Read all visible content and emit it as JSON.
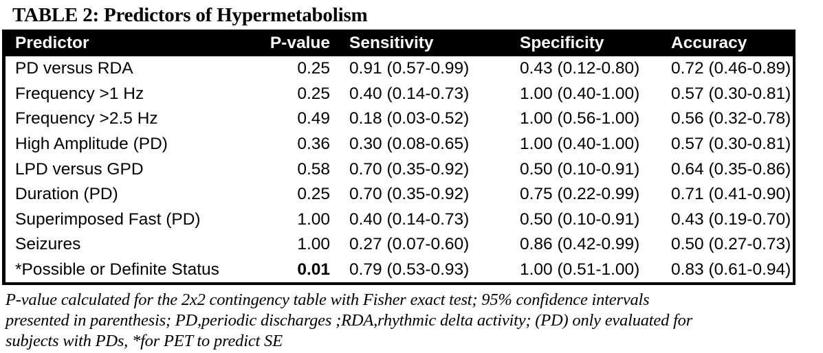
{
  "title": "TABLE 2: Predictors of Hypermetabolism",
  "colors": {
    "header_background": "#000000",
    "header_text": "#ffffff",
    "body_text": "#000000",
    "page_background": "#ffffff",
    "table_border": "#000000"
  },
  "table": {
    "columns": {
      "predictor": "Predictor",
      "p_value": "P-value",
      "sensitivity": "Sensitivity",
      "specificity": "Specificity",
      "accuracy": "Accuracy"
    },
    "rows": [
      {
        "predictor": "PD versus RDA",
        "p_value": "0.25",
        "sensitivity": "0.91 (0.57-0.99)",
        "specificity": "0.43 (0.12-0.80)",
        "accuracy": "0.72 (0.46-0.89)"
      },
      {
        "predictor": "Frequency >1 Hz",
        "p_value": "0.25",
        "sensitivity": "0.40 (0.14-0.73)",
        "specificity": "1.00 (0.40-1.00)",
        "accuracy": "0.57 (0.30-0.81)"
      },
      {
        "predictor": "Frequency >2.5 Hz",
        "p_value": "0.49",
        "sensitivity": "0.18 (0.03-0.52)",
        "specificity": "1.00 (0.56-1.00)",
        "accuracy": "0.56 (0.32-0.78)"
      },
      {
        "predictor": "High Amplitude (PD)",
        "p_value": "0.36",
        "sensitivity": "0.30 (0.08-0.65)",
        "specificity": "1.00 (0.40-1.00)",
        "accuracy": "0.57 (0.30-0.81)"
      },
      {
        "predictor": "LPD versus GPD",
        "p_value": "0.58",
        "sensitivity": "0.70 (0.35-0.92)",
        "specificity": "0.50 (0.10-0.91)",
        "accuracy": "0.64 (0.35-0.86)"
      },
      {
        "predictor": "Duration (PD)",
        "p_value": "0.25",
        "sensitivity": "0.70 (0.35-0.92)",
        "specificity": "0.75 (0.22-0.99)",
        "accuracy": "0.71 (0.41-0.90)"
      },
      {
        "predictor": "Superimposed Fast (PD)",
        "p_value": "1.00",
        "sensitivity": "0.40 (0.14-0.73)",
        "specificity": "0.50 (0.10-0.91)",
        "accuracy": "0.43 (0.19-0.70)"
      },
      {
        "predictor": "Seizures",
        "p_value": "1.00",
        "sensitivity": "0.27 (0.07-0.60)",
        "specificity": "0.86 (0.42-0.99)",
        "accuracy": "0.50 (0.27-0.73)"
      },
      {
        "predictor": "*Possible or Definite Status",
        "p_value": "0.01",
        "sensitivity": "0.79 (0.53-0.93)",
        "specificity": "1.00 (0.51-1.00)",
        "accuracy": "0.83 (0.61-0.94)"
      }
    ]
  },
  "footnote": {
    "lines": [
      "P-value calculated for the 2x2 contingency table with Fisher exact test; 95% confidence intervals",
      "presented in parenthesis; PD,periodic discharges ;RDA,rhythmic delta activity; (PD) only evaluated for",
      "subjects with PDs, *for PET to predict SE"
    ]
  }
}
